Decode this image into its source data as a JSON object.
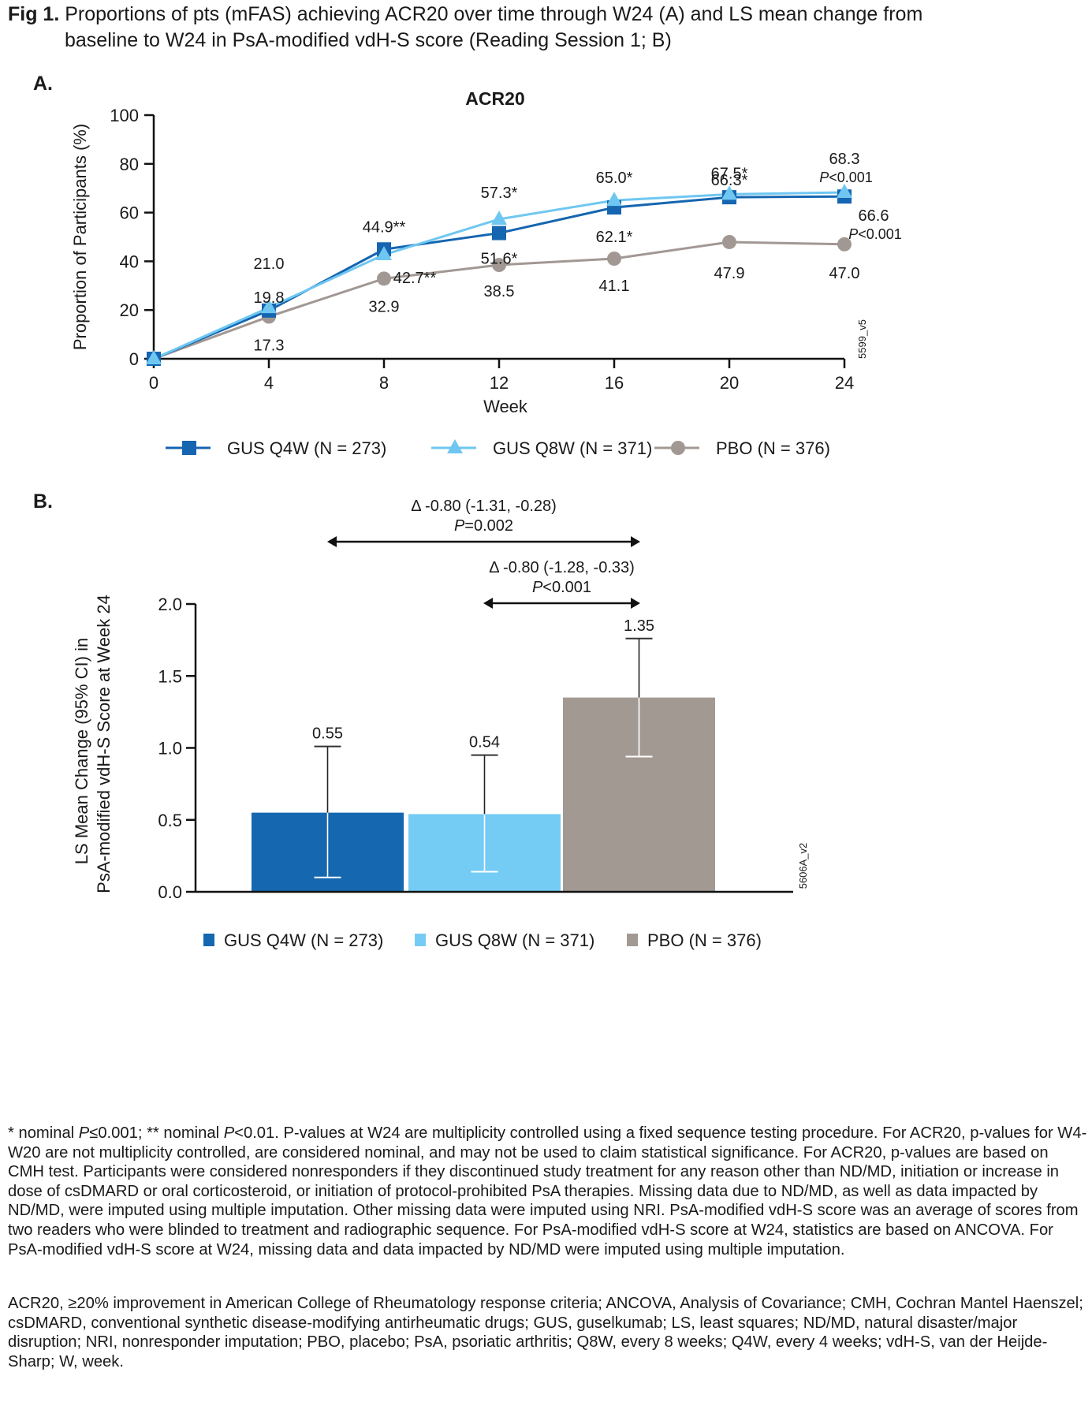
{
  "figure": {
    "label": "Fig 1.",
    "title_line1": "Proportions of pts (mFAS) achieving ACR20 over time through W24 (A) and LS mean change from",
    "title_line2": "baseline to W24 in PsA-modified vdH-S score (Reading Session 1; B)"
  },
  "panels": {
    "a_label": "A.",
    "b_label": "B."
  },
  "chart_data": [
    {
      "type": "line",
      "title": "ACR20",
      "xlabel": "Week",
      "ylabel": "Proportion of Participants (%)",
      "x": [
        0,
        4,
        8,
        12,
        16,
        20,
        24
      ],
      "xticks": [
        "0",
        "4",
        "8",
        "12",
        "16",
        "20",
        "24"
      ],
      "yticks": [
        "0",
        "20",
        "40",
        "60",
        "80",
        "100"
      ],
      "xlim": [
        0,
        24
      ],
      "ylim": [
        0,
        100
      ],
      "grid": false,
      "legend_position": "bottom",
      "watermark": "5599_v5",
      "series": [
        {
          "name": "GUS Q4W (N = 273)",
          "marker": "square",
          "color": "#1565b0",
          "values": [
            0,
            19.8,
            44.9,
            51.6,
            62.1,
            66.3,
            66.6
          ],
          "labels": [
            "",
            "19.8",
            "44.9**",
            "51.6*",
            "62.1*",
            "66.3*",
            "66.6"
          ],
          "annotations": {
            "24": "P<0.001"
          }
        },
        {
          "name": "GUS Q8W (N = 371)",
          "marker": "triangle",
          "color": "#6fc7f1",
          "values": [
            0,
            21.0,
            42.7,
            57.3,
            65.0,
            67.5,
            68.3
          ],
          "labels": [
            "",
            "21.0",
            "42.7**",
            "57.3*",
            "65.0*",
            "67.5*",
            "68.3"
          ],
          "annotations": {
            "24": "P<0.001"
          }
        },
        {
          "name": "PBO (N = 376)",
          "marker": "circle",
          "color": "#a29893",
          "values": [
            0,
            17.3,
            32.9,
            38.5,
            41.1,
            47.9,
            47.0
          ],
          "labels": [
            "",
            "17.3",
            "32.9",
            "38.5",
            "41.1",
            "47.9",
            "47.0"
          ]
        }
      ]
    },
    {
      "type": "bar",
      "title": "",
      "xlabel": "",
      "ylabel_line1": "LS Mean Change (95% CI) in",
      "ylabel_line2": "PsA-modified vdH-S Score at Week 24",
      "categories": [
        "GUS Q4W (N = 273)",
        "GUS Q8W (N = 371)",
        "PBO (N = 376)"
      ],
      "values": [
        0.55,
        0.54,
        1.35
      ],
      "value_labels": [
        "0.55",
        "0.54",
        "1.35"
      ],
      "ci_lower": [
        0.1,
        0.14,
        0.94
      ],
      "ci_upper": [
        1.01,
        0.95,
        1.76
      ],
      "colors": [
        "#1567b0",
        "#74ccf4",
        "#a39993"
      ],
      "yticks": [
        "0.0",
        "0.5",
        "1.0",
        "1.5",
        "2.0"
      ],
      "ylim": [
        0,
        2.0
      ],
      "grid": false,
      "legend_position": "bottom",
      "watermark": "5606A_v2",
      "comparisons": [
        {
          "from": 0,
          "to": 2,
          "delta_label": "Δ -0.80 (-1.31, -0.28)",
          "p_label_italic": "P",
          "p_label_rest": "=0.002"
        },
        {
          "from": 1,
          "to": 2,
          "delta_label": "Δ -0.80 (-1.28, -0.33)",
          "p_label_italic": "P",
          "p_label_rest": "<0.001"
        }
      ]
    }
  ],
  "footnotes": {
    "para1": [
      {
        "t": "* nominal "
      },
      {
        "i": "P"
      },
      {
        "t": "≤0.001; ** nominal "
      },
      {
        "i": "P"
      },
      {
        "t": "<0.01. P-values at W24 are multiplicity controlled using a fixed sequence testing procedure. For ACR20, p-values for W4-W20 are not multiplicity controlled, are considered nominal, and may not be used to claim statistical significance. For ACR20, p-values are based on CMH test. Participants were considered nonresponders if they discontinued study treatment for any reason other than ND/MD, initiation or increase in dose of csDMARD or oral corticosteroid, or initiation of protocol-prohibited PsA therapies. Missing data due to ND/MD, as well as data impacted by ND/MD, were imputed using multiple imputation. Other missing data were imputed using NRI. PsA-modified vdH-S score was an average of scores from two readers who were blinded to treatment and radiographic sequence. For PsA-modified vdH-S score at W24, statistics are based on ANCOVA. For PsA-modified vdH-S score at W24, missing data and data impacted by ND/MD were imputed using multiple imputation."
      }
    ],
    "para2": "ACR20, ≥20% improvement in American College of Rheumatology response criteria; ANCOVA, Analysis of Covariance; CMH, Cochran Mantel Haenszel; csDMARD, conventional synthetic disease-modifying antirheumatic drugs; GUS, guselkumab; LS, least squares; ND/MD, natural disaster/major disruption; NRI, nonresponder imputation; PBO, placebo; PsA, psoriatic arthritis; Q8W, every 8 weeks; Q4W, every 4 weeks; vdH-S, van der Heijde-Sharp; W, week."
  }
}
